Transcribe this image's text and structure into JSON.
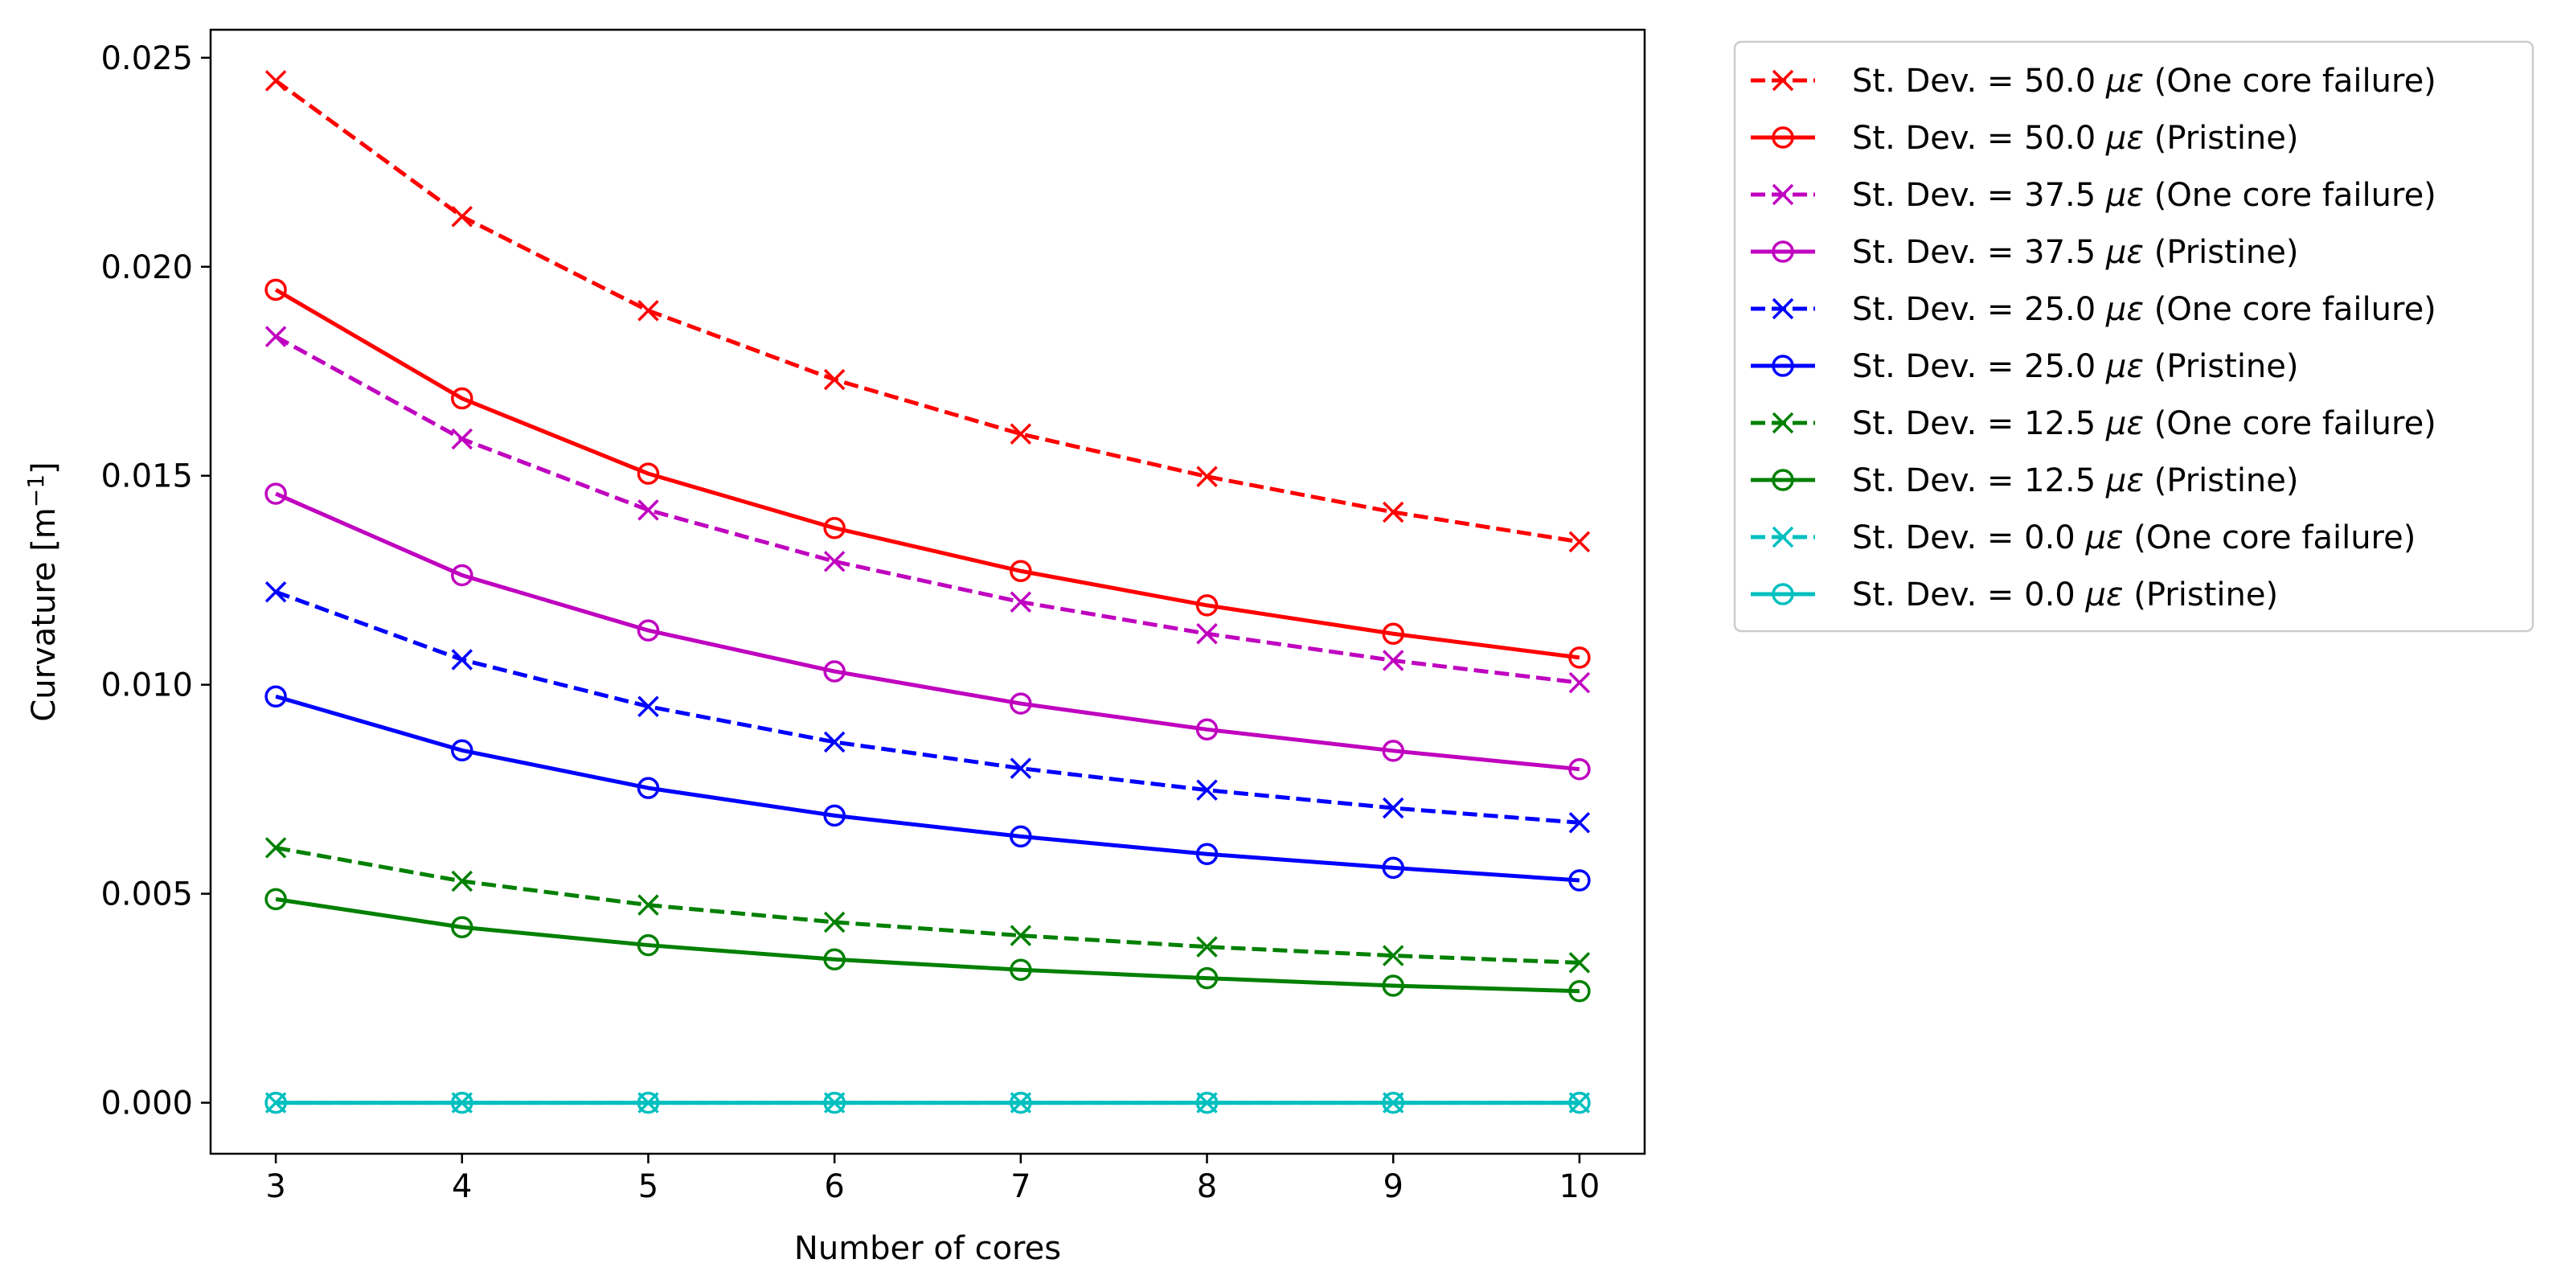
{
  "chart_data": {
    "type": "line",
    "title": "",
    "xlabel": "Number of cores",
    "ylabel": "Curvature [m",
    "ylabel_sup": "−1",
    "ylabel_suffix": "]",
    "x": [
      3,
      4,
      5,
      6,
      7,
      8,
      9,
      10
    ],
    "xlim": [
      2.65,
      10.35
    ],
    "ylim": [
      -0.00122,
      0.02567
    ],
    "x_ticks": [
      3,
      4,
      5,
      6,
      7,
      8,
      9,
      10
    ],
    "y_ticks": [
      0.0,
      0.005,
      0.01,
      0.015,
      0.02,
      0.025
    ],
    "y_tick_labels": [
      "0.000",
      "0.005",
      "0.010",
      "0.015",
      "0.020",
      "0.025"
    ],
    "grid": false,
    "legend_position": "outside-right-top",
    "series": [
      {
        "name_prefix": "St. Dev. = 50.0 ",
        "name_unit": "με",
        "name_suffix": " (One core failure)",
        "color": "#ff0000",
        "linestyle": "dashed",
        "marker": "x",
        "values": [
          0.02445,
          0.0212,
          0.01895,
          0.0173,
          0.016,
          0.01498,
          0.01413,
          0.01342
        ]
      },
      {
        "name_prefix": "St. Dev. = 50.0 ",
        "name_unit": "με",
        "name_suffix": " (Pristine)",
        "color": "#ff0000",
        "linestyle": "solid",
        "marker": "o",
        "values": [
          0.01945,
          0.01685,
          0.01505,
          0.01375,
          0.01272,
          0.0119,
          0.01122,
          0.01065
        ]
      },
      {
        "name_prefix": "St. Dev. = 37.5 ",
        "name_unit": "με",
        "name_suffix": " (One core failure)",
        "color": "#bf00bf",
        "linestyle": "dashed",
        "marker": "x",
        "values": [
          0.01833,
          0.01588,
          0.01418,
          0.01295,
          0.01198,
          0.01122,
          0.01058,
          0.01005
        ]
      },
      {
        "name_prefix": "St. Dev. = 37.5 ",
        "name_unit": "με",
        "name_suffix": " (Pristine)",
        "color": "#bf00bf",
        "linestyle": "solid",
        "marker": "o",
        "values": [
          0.01457,
          0.01262,
          0.0113,
          0.01032,
          0.00955,
          0.00893,
          0.00842,
          0.00798
        ]
      },
      {
        "name_prefix": "St. Dev. = 25.0 ",
        "name_unit": "με",
        "name_suffix": " (One core failure)",
        "color": "#0000ff",
        "linestyle": "dashed",
        "marker": "x",
        "values": [
          0.01222,
          0.0106,
          0.00948,
          0.00863,
          0.008,
          0.00748,
          0.00705,
          0.0067
        ]
      },
      {
        "name_prefix": "St. Dev. = 25.0 ",
        "name_unit": "με",
        "name_suffix": " (Pristine)",
        "color": "#0000ff",
        "linestyle": "solid",
        "marker": "o",
        "values": [
          0.00972,
          0.00843,
          0.00753,
          0.00687,
          0.00637,
          0.00595,
          0.00562,
          0.00532
        ]
      },
      {
        "name_prefix": "St. Dev. = 12.5 ",
        "name_unit": "με",
        "name_suffix": " (One core failure)",
        "color": "#008000",
        "linestyle": "dashed",
        "marker": "x",
        "values": [
          0.0061,
          0.0053,
          0.00473,
          0.00432,
          0.004,
          0.00373,
          0.00352,
          0.00335
        ]
      },
      {
        "name_prefix": "St. Dev. = 12.5 ",
        "name_unit": "με",
        "name_suffix": " (Pristine)",
        "color": "#008000",
        "linestyle": "solid",
        "marker": "o",
        "values": [
          0.00487,
          0.0042,
          0.00377,
          0.00343,
          0.00318,
          0.00298,
          0.0028,
          0.00267
        ]
      },
      {
        "name_prefix": "St. Dev. = 0.0 ",
        "name_unit": "με",
        "name_suffix": " (One core failure)",
        "color": "#00bfbf",
        "linestyle": "dashed",
        "marker": "x",
        "values": [
          0.0,
          0.0,
          0.0,
          0.0,
          0.0,
          0.0,
          0.0,
          0.0
        ]
      },
      {
        "name_prefix": "St. Dev. = 0.0 ",
        "name_unit": "με",
        "name_suffix": " (Pristine)",
        "color": "#00bfbf",
        "linestyle": "solid",
        "marker": "o",
        "values": [
          0.0,
          0.0,
          0.0,
          0.0,
          0.0,
          0.0,
          0.0,
          0.0
        ]
      }
    ]
  }
}
